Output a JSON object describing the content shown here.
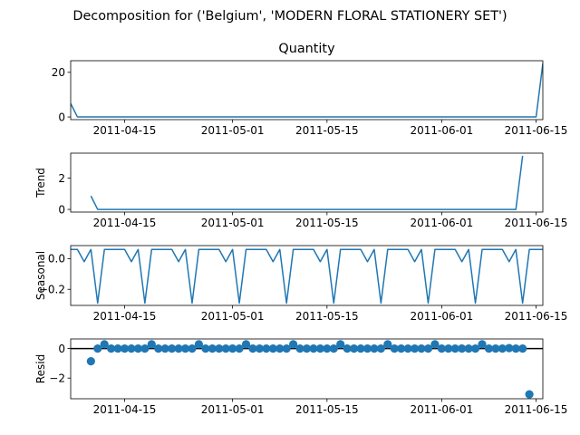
{
  "chart_data": {
    "type": "line",
    "title": "Decomposition for ('Belgium', 'MODERN FLORAL STATIONERY SET')",
    "x_start": "2011-04-07",
    "x_end": "2011-06-16",
    "x_tick_labels": [
      "2011-04-15",
      "2011-05-01",
      "2011-05-15",
      "2011-06-01",
      "2011-06-15"
    ],
    "panels": [
      {
        "name": "observed",
        "title": "Quantity",
        "ylabel": "",
        "kind": "line",
        "ylim": [
          -1.2,
          25.2
        ],
        "yticks": [
          0,
          20
        ],
        "color": "#1f77b4",
        "x": [
          "2011-04-07",
          "2011-04-08",
          "2011-06-15",
          "2011-06-16"
        ],
        "y": [
          6,
          0,
          0,
          24
        ]
      },
      {
        "name": "trend",
        "title": "",
        "ylabel": "Trend",
        "kind": "line",
        "ylim": [
          -0.17,
          3.6
        ],
        "yticks": [
          0,
          2
        ],
        "color": "#1f77b4",
        "x": [
          "2011-04-10",
          "2011-04-11",
          "2011-06-12",
          "2011-06-13"
        ],
        "y": [
          0.86,
          0,
          0,
          3.43
        ]
      },
      {
        "name": "seasonal",
        "title": "",
        "ylabel": "Seasonal",
        "kind": "line",
        "ylim": [
          -0.305,
          0.085
        ],
        "yticks": [
          0.0,
          -0.2
        ],
        "ytick_labels": [
          "0.0",
          "−0.2"
        ],
        "color": "#1f77b4",
        "season_anchor": "2011-04-07",
        "pattern": [
          0.06,
          0.06,
          -0.02,
          0.06,
          -0.29,
          0.06,
          0.06
        ]
      },
      {
        "name": "resid",
        "title": "",
        "ylabel": "Resid",
        "kind": "scatter",
        "ylim": [
          -3.4,
          0.65
        ],
        "yticks": [
          0,
          -2
        ],
        "ytick_labels": [
          "0",
          "−2"
        ],
        "color": "#1f77b4",
        "zero_line": true,
        "x_start": "2011-04-10",
        "x_end": "2011-06-13",
        "default_y": 0,
        "overrides": {
          "2011-04-10": -0.86,
          "2011-04-12": 0.29,
          "2011-04-19": 0.29,
          "2011-04-26": 0.29,
          "2011-05-03": 0.29,
          "2011-05-10": 0.29,
          "2011-05-17": 0.29,
          "2011-05-24": 0.29,
          "2011-05-31": 0.29,
          "2011-06-07": 0.29,
          "2011-06-11": 0.03,
          "2011-06-12": 0.0
        },
        "extra_points": [
          {
            "x": "2011-06-14",
            "y": -3.1
          }
        ]
      }
    ]
  }
}
